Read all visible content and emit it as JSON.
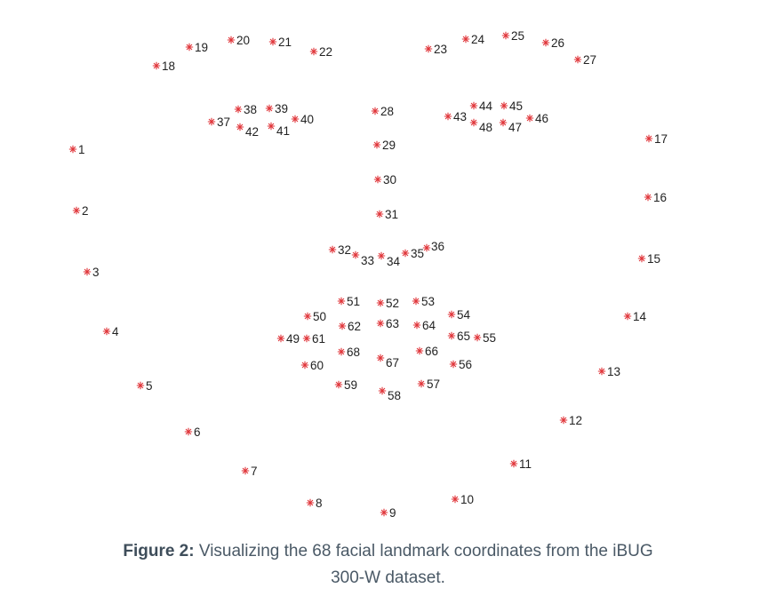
{
  "figure": {
    "caption_label": "Figure 2:",
    "caption_line1": "Visualizing the 68 facial landmark coordinates from the iBUG",
    "caption_line2": "300-W dataset.",
    "marker_color": "#e0353a",
    "label_color": "#222222"
  },
  "landmarks": [
    {
      "id": "1"
    },
    {
      "id": "2"
    },
    {
      "id": "3"
    },
    {
      "id": "4"
    },
    {
      "id": "5"
    },
    {
      "id": "6"
    },
    {
      "id": "7"
    },
    {
      "id": "8"
    },
    {
      "id": "9"
    },
    {
      "id": "10"
    },
    {
      "id": "11"
    },
    {
      "id": "12"
    },
    {
      "id": "13"
    },
    {
      "id": "14"
    },
    {
      "id": "15"
    },
    {
      "id": "16"
    },
    {
      "id": "17"
    },
    {
      "id": "18"
    },
    {
      "id": "19"
    },
    {
      "id": "20"
    },
    {
      "id": "21"
    },
    {
      "id": "22"
    },
    {
      "id": "23"
    },
    {
      "id": "24"
    },
    {
      "id": "25"
    },
    {
      "id": "26"
    },
    {
      "id": "27"
    },
    {
      "id": "28"
    },
    {
      "id": "29"
    },
    {
      "id": "30"
    },
    {
      "id": "31"
    },
    {
      "id": "32"
    },
    {
      "id": "33"
    },
    {
      "id": "34"
    },
    {
      "id": "35"
    },
    {
      "id": "36"
    },
    {
      "id": "37"
    },
    {
      "id": "38"
    },
    {
      "id": "39"
    },
    {
      "id": "40"
    },
    {
      "id": "41"
    },
    {
      "id": "42"
    },
    {
      "id": "43"
    },
    {
      "id": "44"
    },
    {
      "id": "45"
    },
    {
      "id": "46"
    },
    {
      "id": "47"
    },
    {
      "id": "48"
    },
    {
      "id": "49"
    },
    {
      "id": "50"
    },
    {
      "id": "51"
    },
    {
      "id": "52"
    },
    {
      "id": "53"
    },
    {
      "id": "54"
    },
    {
      "id": "55"
    },
    {
      "id": "56"
    },
    {
      "id": "57"
    },
    {
      "id": "58"
    },
    {
      "id": "59"
    },
    {
      "id": "60"
    },
    {
      "id": "61"
    },
    {
      "id": "62"
    },
    {
      "id": "63"
    },
    {
      "id": "64"
    },
    {
      "id": "65"
    },
    {
      "id": "66"
    },
    {
      "id": "67"
    },
    {
      "id": "68"
    }
  ]
}
